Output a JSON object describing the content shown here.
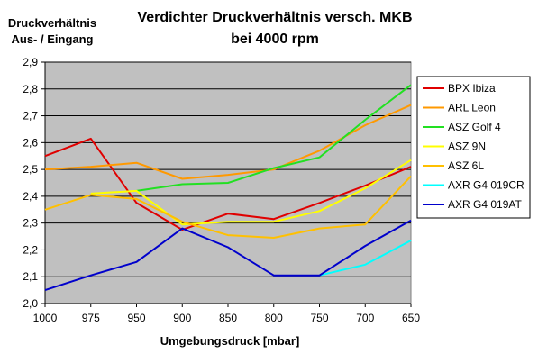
{
  "chart_data": {
    "type": "line",
    "title_line1": "Verdichter Druckverhältnis versch. MKB",
    "title_line2": "bei 4000 rpm",
    "ylabel_line1": "Druckverhältnis",
    "ylabel_line2": "Aus- / Eingang",
    "xlabel": "Umgebungsdruck [mbar]",
    "categories": [
      "1000",
      "975",
      "950",
      "900",
      "850",
      "800",
      "750",
      "700",
      "650"
    ],
    "yticks": [
      "2,0",
      "2,1",
      "2,2",
      "2,3",
      "2,4",
      "2,5",
      "2,6",
      "2,7",
      "2,8",
      "2,9"
    ],
    "ylim": [
      2.0,
      2.9
    ],
    "grid": "horizontal",
    "plot_background": "#c0c0c0",
    "legend_position": "right",
    "series": [
      {
        "name": "BPX Ibiza",
        "color": "#e00000",
        "values": [
          2.55,
          2.615,
          2.375,
          2.275,
          2.335,
          2.315,
          2.375,
          2.44,
          2.51
        ]
      },
      {
        "name": "ARL Leon",
        "color": "#ff9900",
        "values": [
          2.5,
          2.51,
          2.525,
          2.465,
          2.48,
          2.5,
          2.57,
          2.665,
          2.74
        ]
      },
      {
        "name": "ASZ Golf 4",
        "color": "#22e022",
        "values": [
          null,
          null,
          2.42,
          2.445,
          2.45,
          2.505,
          2.545,
          2.685,
          2.815
        ]
      },
      {
        "name": "ASZ 9N",
        "color": "#ffff00",
        "values": [
          null,
          2.41,
          2.42,
          2.295,
          2.305,
          2.305,
          2.345,
          2.43,
          2.535
        ]
      },
      {
        "name": "ASZ 6L",
        "color": "#ffc000",
        "values": [
          2.35,
          2.405,
          2.39,
          2.305,
          2.255,
          2.245,
          2.28,
          2.295,
          2.475
        ]
      },
      {
        "name": "AXR G4 019CR",
        "color": "#00ffff",
        "values": [
          null,
          null,
          null,
          null,
          null,
          null,
          2.105,
          2.145,
          2.235
        ]
      },
      {
        "name": "AXR G4 019AT",
        "color": "#0000cc",
        "values": [
          2.05,
          2.105,
          2.155,
          2.28,
          2.21,
          2.105,
          2.105,
          2.215,
          2.31
        ]
      }
    ]
  }
}
